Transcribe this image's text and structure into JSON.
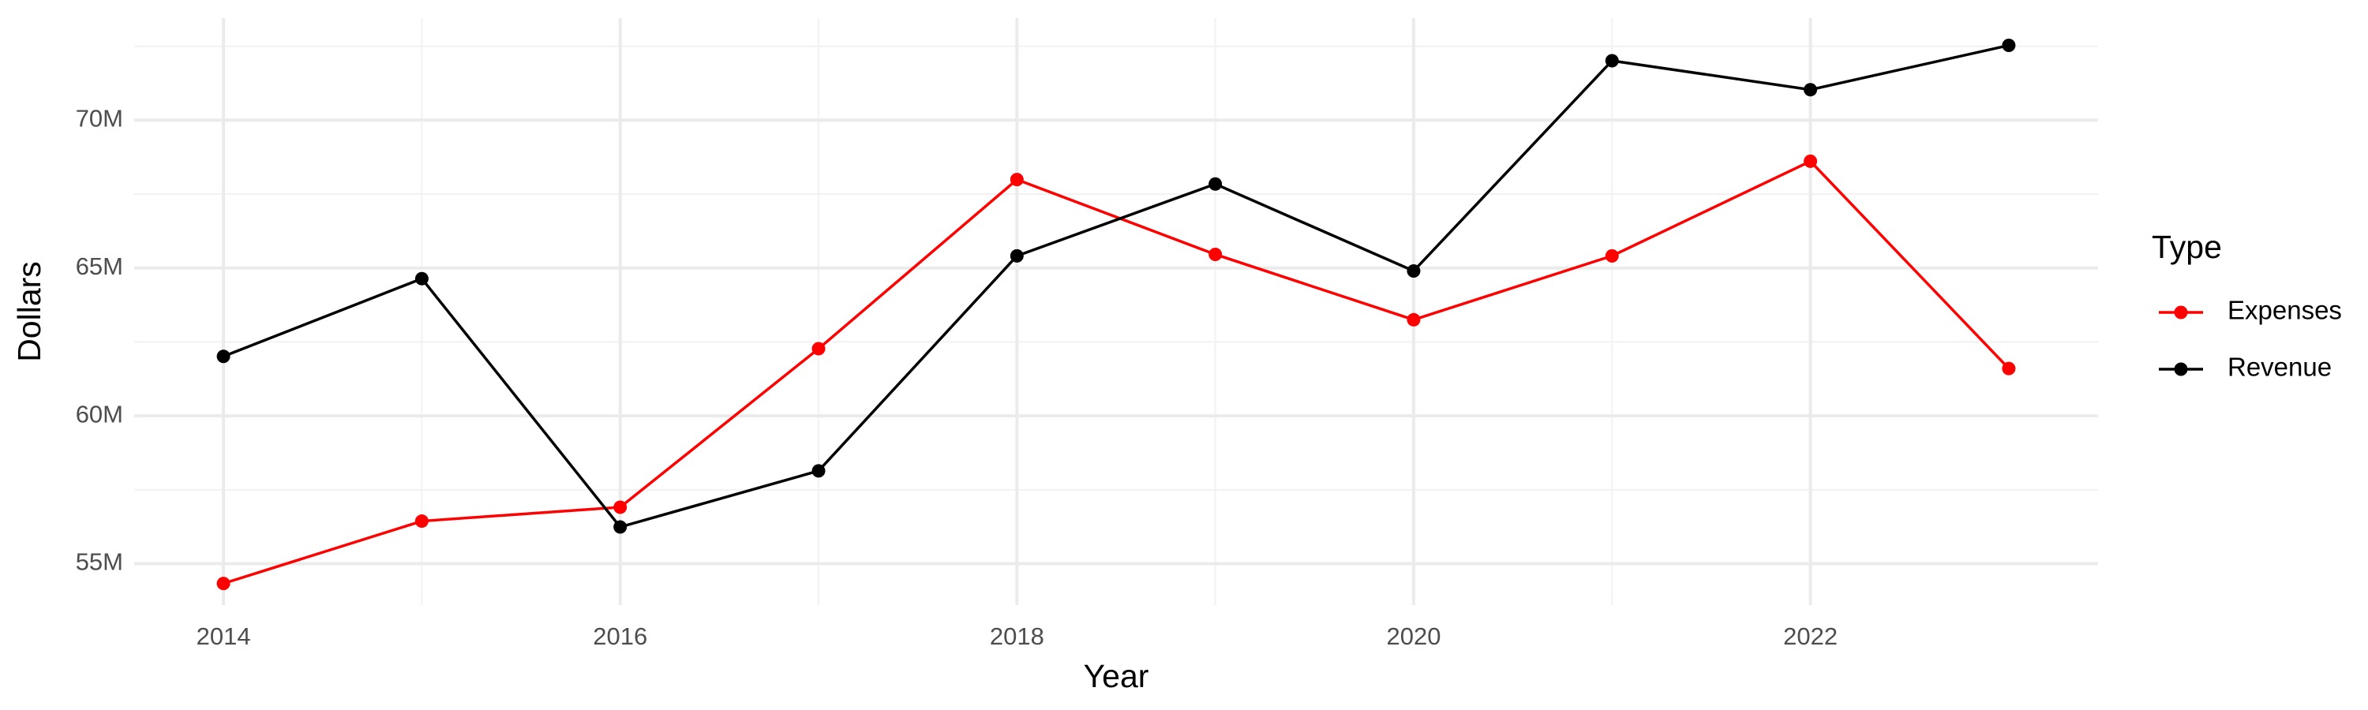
{
  "chart_data": {
    "type": "line",
    "x_label": "Year",
    "y_label": "Dollars",
    "legend_title": "Type",
    "legend": "right",
    "grid": true,
    "x": [
      2014,
      2015,
      2016,
      2017,
      2018,
      2019,
      2020,
      2021,
      2022,
      2023
    ],
    "xlim": [
      2013.55,
      2023.45
    ],
    "xticks": [
      2014,
      2016,
      2018,
      2020,
      2022
    ],
    "ylim": [
      53600000,
      73450000
    ],
    "yticks": [
      {
        "value": 55000000,
        "label": "55M"
      },
      {
        "value": 60000000,
        "label": "60M"
      },
      {
        "value": 65000000,
        "label": "65M"
      },
      {
        "value": 70000000,
        "label": "70M"
      }
    ],
    "series": [
      {
        "name": "Expenses",
        "color": "#ff0000",
        "values": [
          54330000,
          56440000,
          56910000,
          62270000,
          67990000,
          65460000,
          63250000,
          65410000,
          68610000,
          61600000
        ]
      },
      {
        "name": "Revenue",
        "color": "#000000",
        "values": [
          62010000,
          64640000,
          56240000,
          58140000,
          65410000,
          67840000,
          64900000,
          72010000,
          71030000,
          72530000
        ]
      }
    ]
  }
}
